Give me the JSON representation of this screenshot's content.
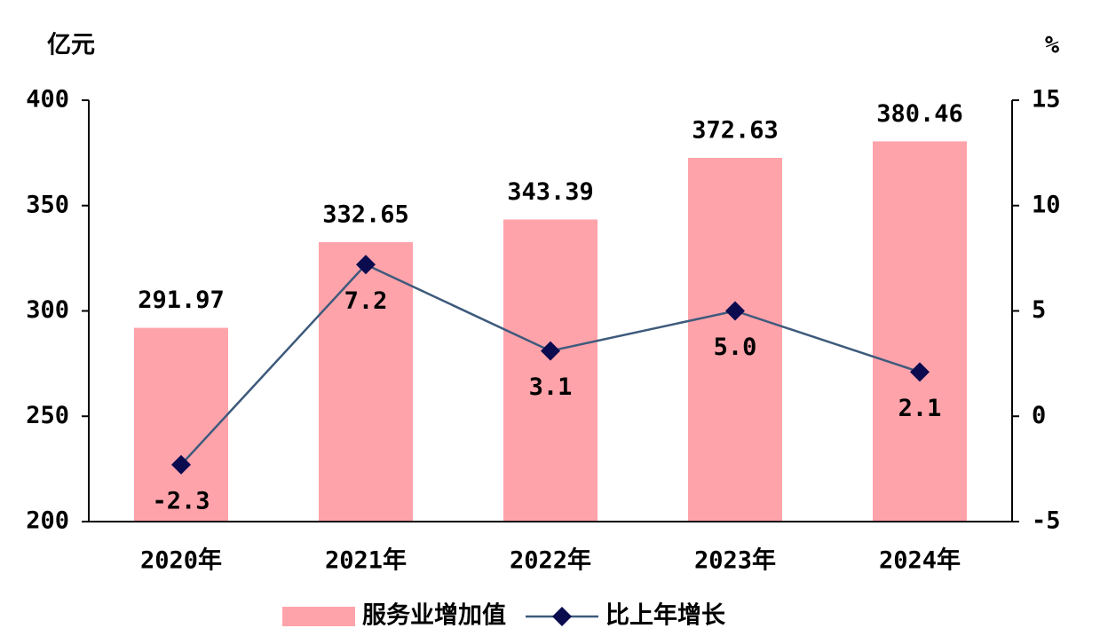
{
  "chart_data": {
    "type": "bar",
    "ylabel": "亿元",
    "y2label": "%",
    "categories": [
      "2020年",
      "2021年",
      "2022年",
      "2023年",
      "2024年"
    ],
    "series": [
      {
        "name": "服务业增加值",
        "type": "bar",
        "color": "#ffa3ab",
        "values": [
          291.97,
          332.65,
          343.39,
          372.63,
          380.46
        ]
      },
      {
        "name": "比上年增长",
        "type": "line",
        "axis": "y2",
        "color": "#3e5a7c",
        "marker_color": "#0b0b4f",
        "values": [
          -2.3,
          7.2,
          3.1,
          5.0,
          2.1
        ],
        "value_labels": [
          "-2.3",
          "7.2",
          "3.1",
          "5.0",
          "2.1"
        ]
      }
    ],
    "ylim": [
      200,
      400
    ],
    "yticks": [
      200,
      250,
      300,
      350,
      400
    ],
    "y2lim": [
      -5,
      15
    ],
    "y2ticks": [
      -5,
      0,
      5,
      10,
      15
    ],
    "grid": false
  }
}
